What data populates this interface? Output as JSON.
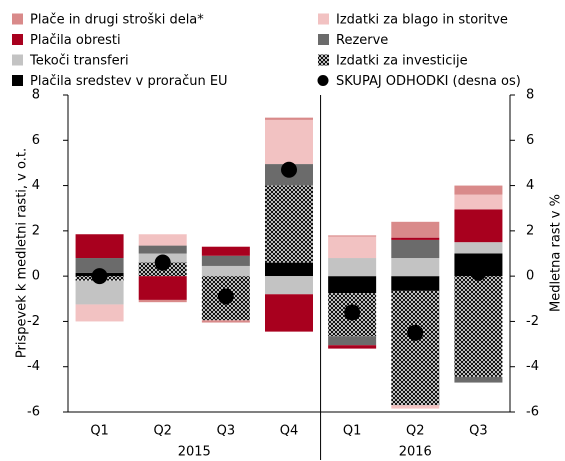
{
  "chart_data": {
    "type": "bar",
    "stacked": true,
    "y_label": "Prispevek k medletni rasti, v o.t.",
    "y2_label": "Medletna rast v %",
    "categories": [
      "Q1",
      "Q2",
      "Q3",
      "Q4",
      "Q1",
      "Q2",
      "Q3"
    ],
    "groups": [
      {
        "label": "2015",
        "count": 4
      },
      {
        "label": "2016",
        "count": 3
      }
    ],
    "ylim": [
      -6,
      8
    ],
    "yticks": [
      -6,
      -4,
      -2,
      0,
      2,
      4,
      6,
      8
    ],
    "y2lim": [
      -6,
      8
    ],
    "y2ticks": [
      -6,
      -4,
      -2,
      0,
      2,
      4,
      6,
      8
    ],
    "series": [
      {
        "name": "Plače in drugi stroški dela*",
        "color": "#d98a8a",
        "values": [
          0,
          -0.1,
          -0.1,
          0.1,
          0.05,
          0.7,
          0.4
        ]
      },
      {
        "name": "Izdatki za blago in storitve",
        "color": "#f2c2c2",
        "values": [
          -0.75,
          0.5,
          0,
          1.95,
          0.95,
          -0.15,
          0.65
        ]
      },
      {
        "name": "Plačila obresti",
        "color": "#a8001e",
        "values": [
          1.05,
          -1.05,
          0.4,
          -1.65,
          -0.15,
          0.1,
          1.45
        ]
      },
      {
        "name": "Rezerve",
        "color": "#6b6b6b",
        "values": [
          0.65,
          0.35,
          0.45,
          0.95,
          -0.4,
          0.8,
          -0.25
        ]
      },
      {
        "name": "Tekoči transferi",
        "color": "#c3c3c3",
        "values": [
          -1.05,
          0.4,
          0.45,
          -0.8,
          0.8,
          0.8,
          0.5
        ]
      },
      {
        "name": "Izdatki za investicije",
        "color": "#000000",
        "pattern": "crosshatch",
        "values": [
          -0.2,
          0.6,
          -1.95,
          3.4,
          -1.9,
          -5.05,
          -4.45
        ]
      },
      {
        "name": "Plačila sredstev v proračun EU",
        "color": "#000000",
        "values": [
          0.15,
          0,
          0,
          0.6,
          -0.75,
          -0.65,
          1.0
        ]
      },
      {
        "name": "SKUPAJ ODHODKI (desna os)",
        "color": "#000000",
        "type": "scatter",
        "axis": "y2",
        "values": [
          0.0,
          0.6,
          -0.9,
          4.7,
          -1.6,
          -2.5,
          0.15
        ]
      }
    ]
  }
}
